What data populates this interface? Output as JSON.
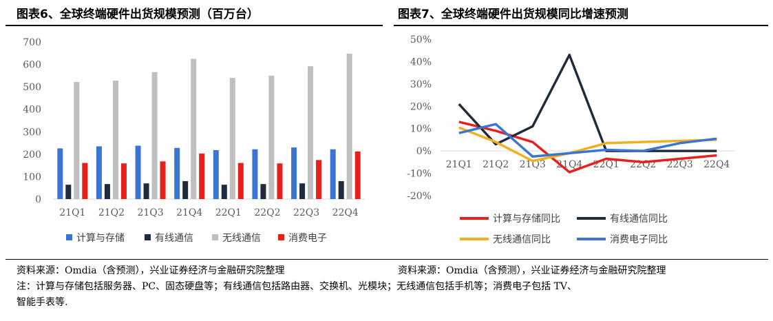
{
  "left_title": "图表6、全球终端硬件出货规模预测（百万台）",
  "right_title": "图表7、全球终端硬件出货规模同比增速预测",
  "source_left": "资料来源：Omdia（含预测），兴业证券经济与金融研究院整理",
  "source_right": "资料来源：Omdia（含预测），兴业证券经济与金融研究院整理",
  "note_line1": "注：计算与存储包括服务器、PC、固态硬盘等；有线通信包括路由器、交换机、光模块；无线通信包括手机等；消费电子包括 TV、",
  "note_line2": "智能手表等.",
  "chart_data": [
    {
      "type": "bar",
      "categories": [
        "21Q1",
        "21Q2",
        "21Q3",
        "21Q4",
        "22Q1",
        "22Q2",
        "22Q3",
        "22Q4"
      ],
      "ylim": [
        0,
        700
      ],
      "yticks": [
        0,
        100,
        200,
        300,
        400,
        500,
        600,
        700
      ],
      "grid": false,
      "legend": "bottom",
      "series": [
        {
          "name": "计算与存储",
          "color": "#3a75d4",
          "values": [
            226,
            235,
            238,
            228,
            218,
            222,
            230,
            222
          ]
        },
        {
          "name": "有线通信",
          "color": "#1f2c3d",
          "values": [
            64,
            67,
            70,
            80,
            64,
            67,
            70,
            80
          ]
        },
        {
          "name": "无线通信",
          "color": "#bfbfbf",
          "values": [
            522,
            528,
            566,
            625,
            540,
            550,
            592,
            648
          ]
        },
        {
          "name": "消费电子",
          "color": "#e8201c",
          "values": [
            161,
            159,
            168,
            203,
            161,
            159,
            174,
            212
          ]
        }
      ]
    },
    {
      "type": "line",
      "categories": [
        "21Q1",
        "21Q2",
        "21Q3",
        "21Q4",
        "22Q1",
        "22Q2",
        "22Q3",
        "22Q4"
      ],
      "ylim": [
        -0.2,
        0.5
      ],
      "yticks": [
        "-20%",
        "-10%",
        "0%",
        "10%",
        "20%",
        "30%",
        "40%",
        "50%"
      ],
      "grid": false,
      "legend": "bottom",
      "series": [
        {
          "name": "计算与存储同比",
          "color": "#e8201c",
          "values": [
            0.13,
            0.09,
            0.04,
            -0.095,
            -0.035,
            -0.05,
            -0.035,
            -0.02
          ]
        },
        {
          "name": "有线通信同比",
          "color": "#1f2c3d",
          "values": [
            0.21,
            0.03,
            0.11,
            0.43,
            0.0,
            0.0,
            0.0,
            0.0
          ]
        },
        {
          "name": "无线通信同比",
          "color": "#f0b020",
          "values": [
            0.105,
            0.04,
            -0.045,
            -0.01,
            0.035,
            0.04,
            0.045,
            0.05
          ]
        },
        {
          "name": "消费电子同比",
          "color": "#3a75d4",
          "values": [
            0.08,
            0.12,
            -0.025,
            -0.01,
            0.005,
            0.0,
            0.035,
            0.055
          ]
        }
      ]
    }
  ]
}
